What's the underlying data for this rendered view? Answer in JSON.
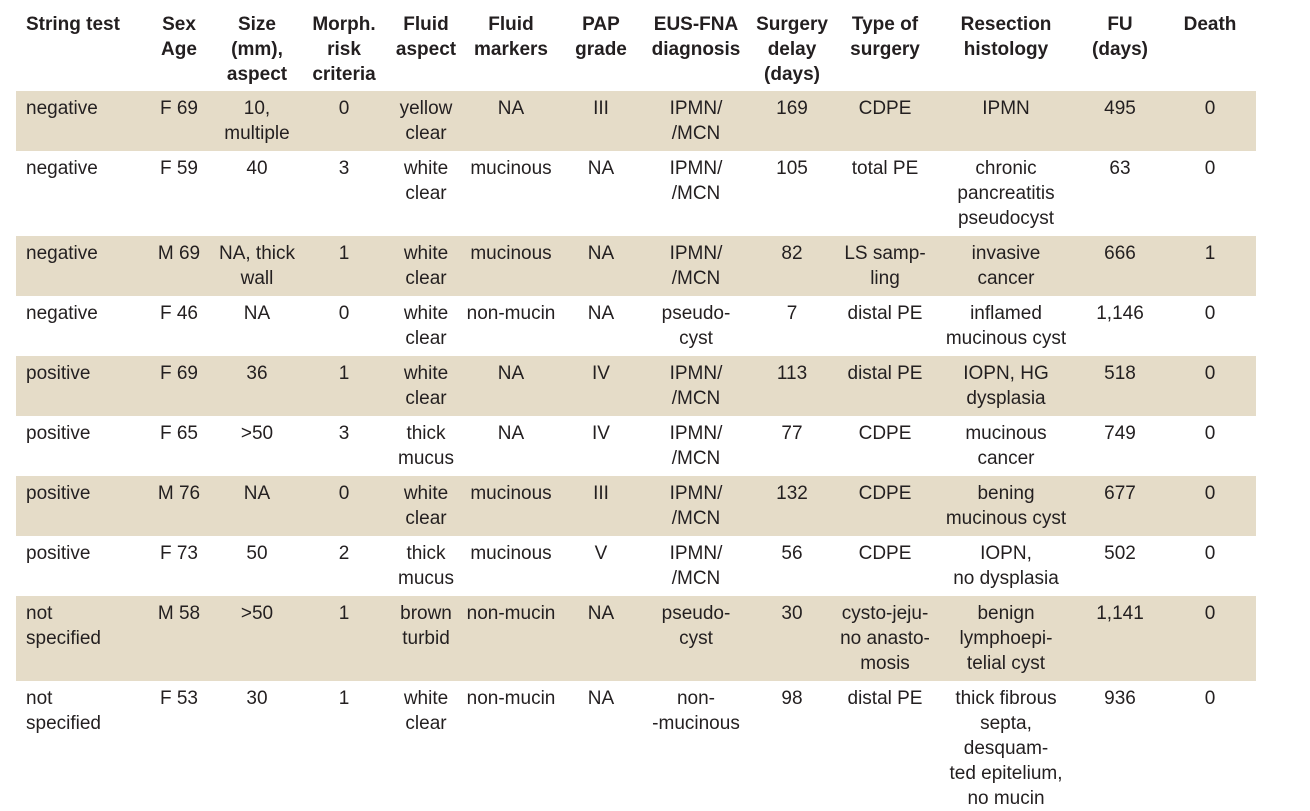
{
  "table": {
    "headers": [
      [
        "String test"
      ],
      [
        "Sex",
        "Age"
      ],
      [
        "Size",
        "(mm),",
        "aspect"
      ],
      [
        "Morph.",
        "risk",
        "criteria"
      ],
      [
        "Fluid",
        "aspect"
      ],
      [
        "Fluid",
        "markers"
      ],
      [
        "PAP",
        "grade"
      ],
      [
        "EUS-FNA",
        "diagnosis"
      ],
      [
        "Surgery",
        "delay",
        "(days)"
      ],
      [
        "Type of",
        "surgery"
      ],
      [
        "Resection",
        "histology"
      ],
      [
        "FU",
        "(days)"
      ],
      [
        "Death"
      ]
    ],
    "rows": [
      [
        [
          "negative"
        ],
        [
          "F 69"
        ],
        [
          "10,",
          "multiple"
        ],
        [
          "0"
        ],
        [
          "yellow",
          "clear"
        ],
        [
          "NA"
        ],
        [
          "III"
        ],
        [
          "IPMN/",
          "/MCN"
        ],
        [
          "169"
        ],
        [
          "CDPE"
        ],
        [
          "IPMN"
        ],
        [
          "495"
        ],
        [
          "0"
        ]
      ],
      [
        [
          "negative"
        ],
        [
          "F 59"
        ],
        [
          "40"
        ],
        [
          "3"
        ],
        [
          "white",
          "clear"
        ],
        [
          "mucinous"
        ],
        [
          "NA"
        ],
        [
          "IPMN/",
          "/MCN"
        ],
        [
          "105"
        ],
        [
          "total PE"
        ],
        [
          "chronic",
          "pancreatitis",
          "pseudocyst"
        ],
        [
          "63"
        ],
        [
          "0"
        ]
      ],
      [
        [
          "negative"
        ],
        [
          "M 69"
        ],
        [
          "NA, thick",
          "wall"
        ],
        [
          "1"
        ],
        [
          "white",
          "clear"
        ],
        [
          "mucinous"
        ],
        [
          "NA"
        ],
        [
          "IPMN/",
          "/MCN"
        ],
        [
          "82"
        ],
        [
          "LS samp-",
          "ling"
        ],
        [
          "invasive",
          "cancer"
        ],
        [
          "666"
        ],
        [
          "1"
        ]
      ],
      [
        [
          "negative"
        ],
        [
          "F 46"
        ],
        [
          "NA"
        ],
        [
          "0"
        ],
        [
          "white",
          "clear"
        ],
        [
          "non-mucin"
        ],
        [
          "NA"
        ],
        [
          "pseudo-",
          "cyst"
        ],
        [
          "7"
        ],
        [
          "distal PE"
        ],
        [
          "inflamed",
          "mucinous cyst"
        ],
        [
          "1,146"
        ],
        [
          "0"
        ]
      ],
      [
        [
          "positive"
        ],
        [
          "F 69"
        ],
        [
          "36"
        ],
        [
          "1"
        ],
        [
          "white",
          "clear"
        ],
        [
          "NA"
        ],
        [
          "IV"
        ],
        [
          "IPMN/",
          "/MCN"
        ],
        [
          "113"
        ],
        [
          "distal PE"
        ],
        [
          "IOPN, HG",
          "dysplasia"
        ],
        [
          "518"
        ],
        [
          "0"
        ]
      ],
      [
        [
          "positive"
        ],
        [
          "F 65"
        ],
        [
          ">50"
        ],
        [
          "3"
        ],
        [
          "thick",
          "mucus"
        ],
        [
          "NA"
        ],
        [
          "IV"
        ],
        [
          "IPMN/",
          "/MCN"
        ],
        [
          "77"
        ],
        [
          "CDPE"
        ],
        [
          "mucinous",
          "cancer"
        ],
        [
          "749"
        ],
        [
          "0"
        ]
      ],
      [
        [
          "positive"
        ],
        [
          "M 76"
        ],
        [
          "NA"
        ],
        [
          "0"
        ],
        [
          "white",
          "clear"
        ],
        [
          "mucinous"
        ],
        [
          "III"
        ],
        [
          "IPMN/",
          "/MCN"
        ],
        [
          "132"
        ],
        [
          "CDPE"
        ],
        [
          "bening",
          "mucinous cyst"
        ],
        [
          "677"
        ],
        [
          "0"
        ]
      ],
      [
        [
          "positive"
        ],
        [
          "F 73"
        ],
        [
          "50"
        ],
        [
          "2"
        ],
        [
          "thick",
          "mucus"
        ],
        [
          "mucinous"
        ],
        [
          "V"
        ],
        [
          "IPMN/",
          "/MCN"
        ],
        [
          "56"
        ],
        [
          "CDPE"
        ],
        [
          "IOPN,",
          "no dysplasia"
        ],
        [
          "502"
        ],
        [
          "0"
        ]
      ],
      [
        [
          "not",
          "specified"
        ],
        [
          "M 58"
        ],
        [
          ">50"
        ],
        [
          "1"
        ],
        [
          "brown",
          "turbid"
        ],
        [
          "non-mucin"
        ],
        [
          "NA"
        ],
        [
          "pseudo-",
          "cyst"
        ],
        [
          "30"
        ],
        [
          "cysto-jeju-",
          "no anasto-",
          "mosis"
        ],
        [
          "benign",
          "lymphoepi-",
          "telial cyst"
        ],
        [
          "1,141"
        ],
        [
          "0"
        ]
      ],
      [
        [
          "not",
          "specified"
        ],
        [
          "F 53"
        ],
        [
          "30"
        ],
        [
          "1"
        ],
        [
          "white",
          "clear"
        ],
        [
          "non-mucin"
        ],
        [
          "NA"
        ],
        [
          "non-",
          "-mucinous"
        ],
        [
          "98"
        ],
        [
          "distal PE"
        ],
        [
          "thick fibrous",
          "septa, desquam-",
          "ted epitelium,",
          "no mucin"
        ],
        [
          "936"
        ],
        [
          "0"
        ]
      ]
    ]
  }
}
